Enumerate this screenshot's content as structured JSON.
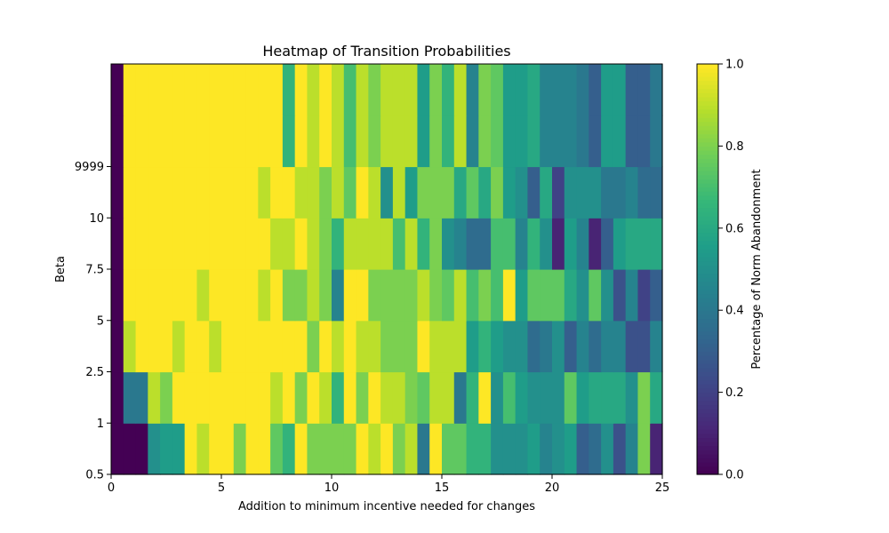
{
  "chart_data": {
    "type": "heatmap",
    "title": "Heatmap of Transition Probabilities",
    "xlabel": "Addition to minimum incentive needed for changes",
    "ylabel": "Beta",
    "colorbar_label": "Percentage of Norm Abandonment",
    "colormap": "viridis",
    "x_ticks": [
      "0",
      "5",
      "10",
      "15",
      "20",
      "25"
    ],
    "xlim": [
      0,
      25
    ],
    "y_rows": [
      "0.5",
      "1",
      "2.5",
      "5",
      "7.5",
      "10",
      "9999",
      ""
    ],
    "y_ticks": [
      "0.5",
      "1",
      "2.5",
      "5",
      "7.5",
      "10",
      "9999"
    ],
    "colorbar_ticks": [
      "0.0",
      "0.2",
      "0.4",
      "0.6",
      "0.8",
      "1.0"
    ],
    "colorbar_range": [
      0,
      1
    ],
    "x_bins": 45,
    "values": [
      "0,0,0,0.5,0.55,0.55,1,0.9,1,1,0.8,1,1,0.75,0.65,1,0.8,0.8,0.8,0.8,1,0.9,1,0.8,0.9,0.4,1,0.75,0.75,0.65,0.65,0.5,0.5,0.5,0.55,0.45,0.5,0.55,0.3,0.35,0.5,0.25,0.45,0.8,0.1",
      "0,0.4,0.4,0.9,0.8,1,1,1,1,1,1,1,1,0.9,1,0.8,1,0.9,0.65,1,0.8,1,0.9,0.9,0.8,0.75,0.9,0.9,0.4,0.65,1,0.5,0.7,0.55,0.5,0.5,0.5,0.75,0.55,0.6,0.6,0.6,0.5,0.8,0.6",
      "0,0.9,1,1,1,0.9,1,1,0.9,1,1,1,1,1,1,1,0.8,1,0.9,1,0.9,0.9,0.8,0.8,0.8,1,0.9,0.9,0.9,0.55,0.65,0.55,0.5,0.5,0.35,0.4,0.5,0.3,0.45,0.35,0.45,0.45,0.25,0.25,0.45",
      "0,1,1,1,1,1,1,0.9,1,1,1,1,0.9,1,0.8,0.8,0.9,0.8,0.45,1,1,0.8,0.8,0.8,0.8,0.9,0.8,0.75,0.9,0.7,0.8,0.7,1,0.55,0.75,0.75,0.75,0.6,0.5,0.75,0.5,0.25,0.45,0.2,0.3",
      "0,1,1,1,1,1,1,1,1,1,1,1,1,0.9,0.9,1,0.9,0.8,0.65,0.9,0.9,0.9,0.9,0.7,0.9,0.65,0.8,0.5,0.45,0.35,0.35,0.7,0.7,0.45,0.65,0.5,0.1,0.55,0.45,0.1,0.3,0.55,0.6,0.6,0.6",
      "0,1,1,1,1,1,1,1,1,1,1,1,0.9,1,1,0.9,0.9,0.8,0.9,0.75,1,0.9,0.5,0.9,0.55,0.8,0.8,0.8,0.6,0.75,0.6,0.8,0.55,0.5,0.3,0.6,0.2,0.5,0.5,0.5,0.4,0.4,0.45,0.35,0.35",
      "0,1,1,1,1,1,1,1,1,1,1,1,1,1,0.65,1,0.9,1,0.9,0.7,0.9,0.8,0.9,0.9,0.9,0.55,0.8,0.65,0.9,0.45,0.8,0.75,0.55,0.55,0.6,0.45,0.45,0.45,0.4,0.3,0.55,0.55,0.3,0.3,0.4",
      "0,1,1,1,1,1,1,1,1,1,1,1,1,1,0.65,1,0.9,1,0.9,0.7,0.9,0.8,0.9,0.9,0.9,0.55,0.8,0.65,0.9,0.45,0.8,0.75,0.55,0.55,0.6,0.45,0.45,0.45,0.4,0.3,0.55,0.55,0.3,0.3,0.4"
    ]
  }
}
